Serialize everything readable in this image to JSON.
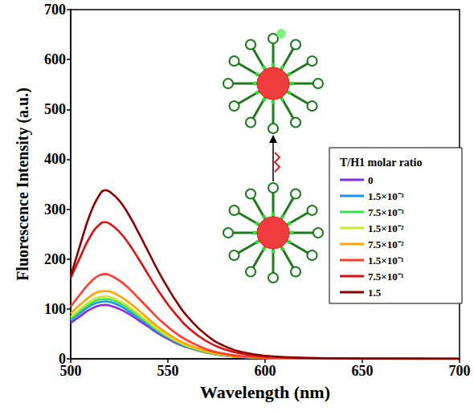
{
  "chart_data": {
    "type": "line",
    "xlabel": "Wavelength (nm)",
    "ylabel": "Fluorescence Intensity (a.u.)",
    "legend_title": "T/H1 molar ratio",
    "legend": "right",
    "grid": false,
    "xlim": [
      500,
      700
    ],
    "xticks": [
      500,
      550,
      600,
      650,
      700
    ],
    "ylim": [
      0,
      700
    ],
    "yticks": [
      0,
      100,
      200,
      300,
      400,
      500,
      600,
      700
    ],
    "x": [
      500,
      505,
      510,
      515,
      518,
      520,
      525,
      530,
      535,
      540,
      545,
      550,
      555,
      560,
      570,
      580,
      590,
      600,
      620,
      650,
      700
    ],
    "series": [
      {
        "name": "0",
        "color": "#8a2be2",
        "values": [
          72,
          86,
          99,
          107,
          108,
          107,
          100,
          90,
          77,
          64,
          51,
          40,
          30,
          23,
          12,
          6,
          3,
          1.6,
          0.5,
          0.2,
          0
        ]
      },
      {
        "name": "1.5×10⁻³",
        "color": "#1e90ff",
        "values": [
          77,
          92,
          106,
          114,
          115,
          114,
          107,
          95,
          82,
          68,
          54,
          43,
          32,
          24,
          13,
          6.3,
          3.2,
          1.7,
          0.6,
          0.2,
          0
        ]
      },
      {
        "name": "7.5×10⁻³",
        "color": "#33e655",
        "values": [
          80,
          96,
          110,
          119,
          120,
          119,
          112,
          100,
          85,
          71,
          56,
          44,
          34,
          25,
          13,
          6.6,
          3.4,
          1.8,
          0.6,
          0.2,
          0
        ]
      },
      {
        "name": "1.5×10⁻²",
        "color": "#c8e632",
        "values": [
          84,
          100,
          115,
          124,
          125,
          124,
          116,
          104,
          89,
          74,
          59,
          46,
          35,
          26,
          14,
          6.9,
          3.5,
          1.9,
          0.6,
          0.2,
          0
        ]
      },
      {
        "name": "7.5×10⁻²",
        "color": "#ffa500",
        "values": [
          91,
          109,
          125,
          135,
          136,
          135,
          126,
          113,
          97,
          80,
          64,
          50,
          38,
          29,
          15,
          7.5,
          3.8,
          2,
          0.7,
          0.3,
          0
        ]
      },
      {
        "name": "1.5×10⁻¹",
        "color": "#ff3b2f",
        "values": [
          105,
          130,
          153,
          168,
          170,
          168,
          157,
          141,
          121,
          101,
          81,
          64,
          49,
          37,
          19,
          9.5,
          4.8,
          2.6,
          0.9,
          0.3,
          0
        ]
      },
      {
        "name": "7.5×10⁻¹",
        "color": "#e01010",
        "values": [
          162,
          205,
          245,
          270,
          274,
          271,
          255,
          230,
          200,
          168,
          137,
          109,
          85,
          64,
          35,
          18,
          9,
          5,
          1.5,
          0.5,
          0
        ]
      },
      {
        "name": "1.5",
        "color": "#8b0000",
        "values": [
          165,
          230,
          290,
          330,
          338,
          335,
          317,
          288,
          252,
          214,
          176,
          142,
          111,
          85,
          47,
          24,
          12,
          6,
          2,
          0.6,
          0
        ]
      }
    ]
  }
}
